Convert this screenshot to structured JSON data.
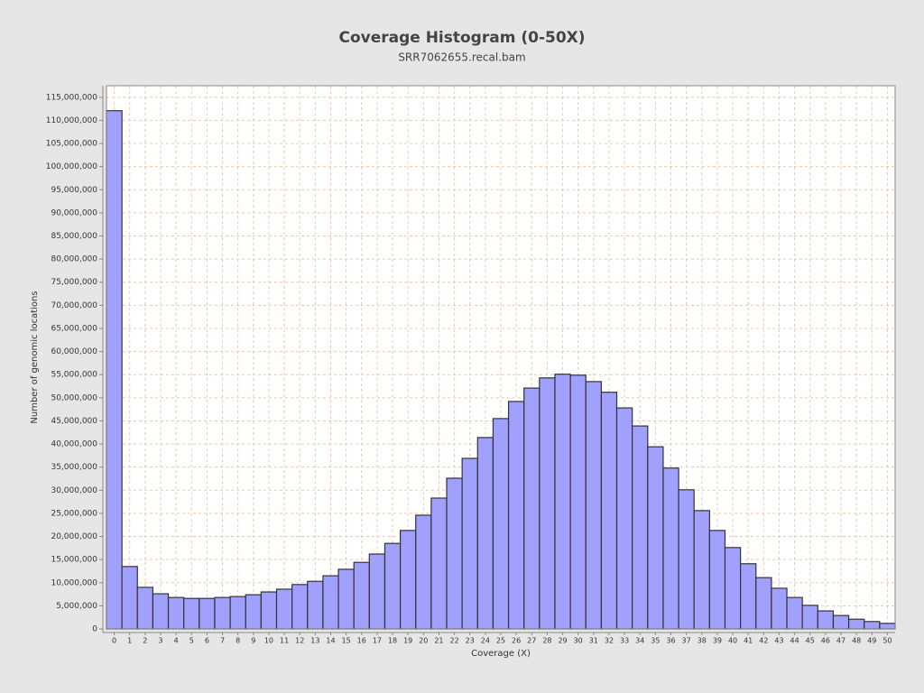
{
  "chart_data": {
    "type": "bar",
    "title": "Coverage Histogram (0-50X)",
    "subtitle": "SRR7062655.recal.bam",
    "x_label": "Coverage (X)",
    "y_label": "Number of genomic locations",
    "categories": [
      "0",
      "1",
      "2",
      "3",
      "4",
      "5",
      "6",
      "7",
      "8",
      "9",
      "10",
      "11",
      "12",
      "13",
      "14",
      "15",
      "16",
      "17",
      "18",
      "19",
      "20",
      "21",
      "22",
      "23",
      "24",
      "25",
      "26",
      "27",
      "28",
      "29",
      "30",
      "31",
      "32",
      "33",
      "34",
      "35",
      "36",
      "37",
      "38",
      "39",
      "40",
      "41",
      "42",
      "43",
      "44",
      "45",
      "46",
      "47",
      "48",
      "49",
      "50"
    ],
    "values": [
      112100000,
      13500000,
      9000000,
      7600000,
      6800000,
      6600000,
      6600000,
      6800000,
      7000000,
      7400000,
      8000000,
      8600000,
      9600000,
      10300000,
      11500000,
      12900000,
      14400000,
      16200000,
      18500000,
      21300000,
      24600000,
      28300000,
      32600000,
      36900000,
      41400000,
      45500000,
      49200000,
      52100000,
      54300000,
      55100000,
      54900000,
      53500000,
      51200000,
      47800000,
      43900000,
      39400000,
      34800000,
      30100000,
      25600000,
      21300000,
      17600000,
      14100000,
      11100000,
      8800000,
      6800000,
      5100000,
      3900000,
      2900000,
      2100000,
      1600000,
      1200000
    ],
    "color": "#a0a0ff",
    "ylim": [
      0,
      117500000
    ],
    "yticks": [
      {
        "value": 0,
        "label": "0"
      },
      {
        "value": 5000000,
        "label": "5,000,000"
      },
      {
        "value": 10000000,
        "label": "10,000,000"
      },
      {
        "value": 15000000,
        "label": "15,000,000"
      },
      {
        "value": 20000000,
        "label": "20,000,000"
      },
      {
        "value": 25000000,
        "label": "25,000,000"
      },
      {
        "value": 30000000,
        "label": "30,000,000"
      },
      {
        "value": 35000000,
        "label": "35,000,000"
      },
      {
        "value": 40000000,
        "label": "40,000,000"
      },
      {
        "value": 45000000,
        "label": "45,000,000"
      },
      {
        "value": 50000000,
        "label": "50,000,000"
      },
      {
        "value": 55000000,
        "label": "55,000,000"
      },
      {
        "value": 60000000,
        "label": "60,000,000"
      },
      {
        "value": 65000000,
        "label": "65,000,000"
      },
      {
        "value": 70000000,
        "label": "70,000,000"
      },
      {
        "value": 75000000,
        "label": "75,000,000"
      },
      {
        "value": 80000000,
        "label": "80,000,000"
      },
      {
        "value": 85000000,
        "label": "85,000,000"
      },
      {
        "value": 90000000,
        "label": "90,000,000"
      },
      {
        "value": 95000000,
        "label": "95,000,000"
      },
      {
        "value": 100000000,
        "label": "100,000,000"
      },
      {
        "value": 105000000,
        "label": "105,000,000"
      },
      {
        "value": 110000000,
        "label": "110,000,000"
      },
      {
        "value": 115000000,
        "label": "115,000,000"
      }
    ],
    "grid": true
  }
}
